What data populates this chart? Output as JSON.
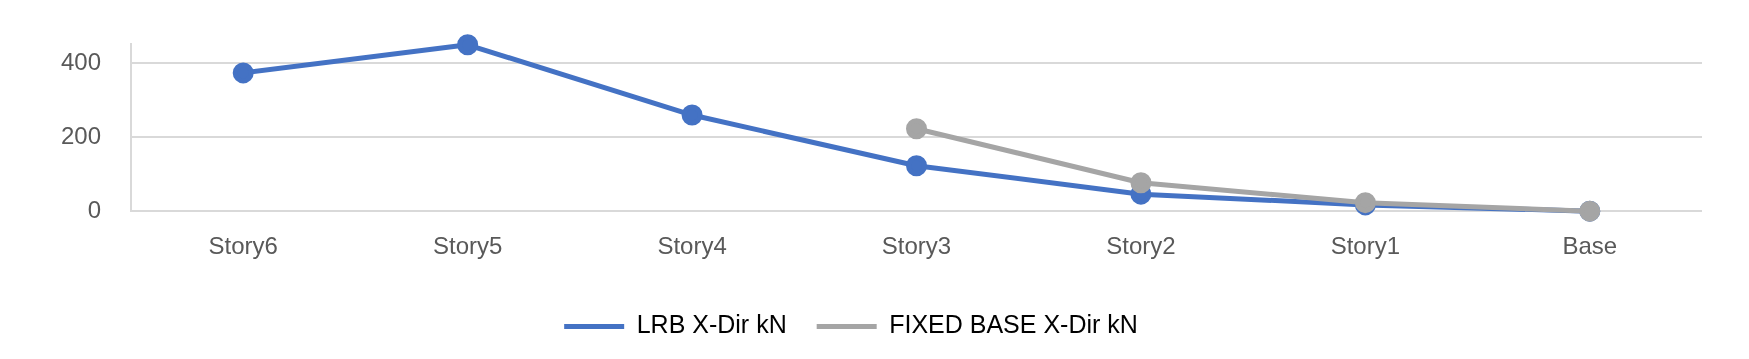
{
  "chart_data": {
    "type": "line",
    "categories": [
      "Story6",
      "Story5",
      "Story4",
      "Story3",
      "Story2",
      "Story1",
      "Base"
    ],
    "series": [
      {
        "name": "LRB X-Dir kN",
        "color": "#4472c4",
        "values": [
          374,
          450,
          260,
          123,
          46,
          17,
          0
        ]
      },
      {
        "name": "FIXED BASE X-Dir kN",
        "color": "#a5a5a5",
        "values": [
          null,
          null,
          null,
          223,
          77,
          23,
          0
        ]
      }
    ],
    "ylim": [
      0,
      451
    ],
    "yticks": [
      0,
      200,
      400
    ],
    "grid": "y",
    "legend": "bottom",
    "marker": "circle",
    "line_style": "solid"
  }
}
